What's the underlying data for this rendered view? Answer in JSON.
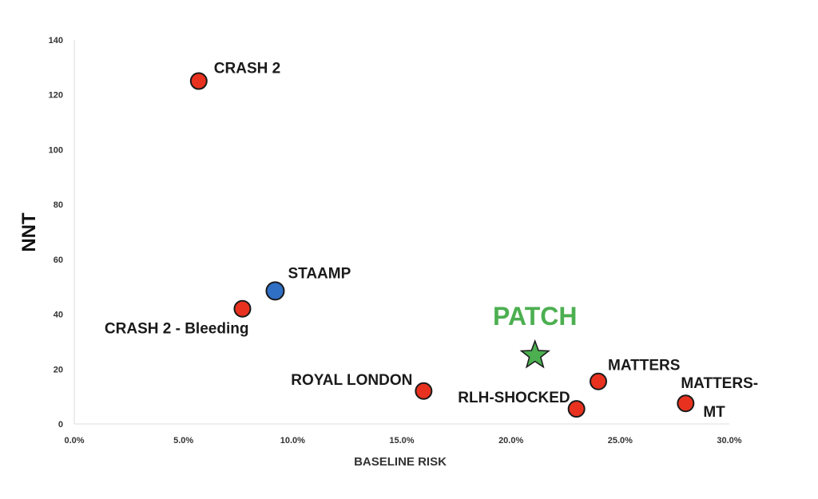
{
  "chart_data": {
    "type": "scatter",
    "title": "",
    "xlabel": "BASELINE RISK",
    "ylabel": "NNT",
    "xlim": [
      0,
      0.3
    ],
    "ylim": [
      0,
      140
    ],
    "x_ticks": [
      0,
      0.05,
      0.1,
      0.15,
      0.2,
      0.25,
      0.3
    ],
    "x_tick_labels": [
      "0.0%",
      "5.0%",
      "10.0%",
      "15.0%",
      "20.0%",
      "25.0%",
      "30.0%"
    ],
    "y_ticks": [
      0,
      20,
      40,
      60,
      80,
      100,
      120,
      140
    ],
    "y_tick_labels": [
      "0",
      "20",
      "40",
      "60",
      "80",
      "100",
      "120",
      "140"
    ],
    "grid": false,
    "points": [
      {
        "label": "CRASH 2",
        "x": 0.057,
        "y": 125,
        "color": "#e8321f",
        "marker": "circle"
      },
      {
        "label": "CRASH 2 - Bleeding",
        "x": 0.077,
        "y": 42,
        "color": "#e8321f",
        "marker": "circle"
      },
      {
        "label": "STAAMP",
        "x": 0.092,
        "y": 48.5,
        "color": "#2f6fc4",
        "marker": "circle"
      },
      {
        "label": "ROYAL LONDON",
        "x": 0.16,
        "y": 12,
        "color": "#e8321f",
        "marker": "circle"
      },
      {
        "label": "PATCH",
        "x": 0.211,
        "y": 25,
        "color": "#4caf50",
        "marker": "star"
      },
      {
        "label": "RLH-SHOCKED",
        "x": 0.23,
        "y": 5.5,
        "color": "#e8321f",
        "marker": "circle"
      },
      {
        "label": "MATTERS",
        "x": 0.24,
        "y": 15.5,
        "color": "#e8321f",
        "marker": "circle"
      },
      {
        "label": "MATTERS-MT",
        "label_lines": [
          "MATTERS-",
          "MT"
        ],
        "x": 0.28,
        "y": 7.5,
        "color": "#e8321f",
        "marker": "circle"
      }
    ]
  }
}
